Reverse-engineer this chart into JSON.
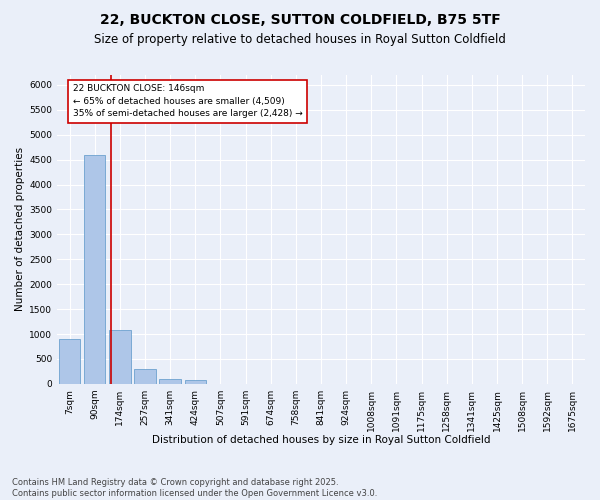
{
  "title": "22, BUCKTON CLOSE, SUTTON COLDFIELD, B75 5TF",
  "subtitle": "Size of property relative to detached houses in Royal Sutton Coldfield",
  "xlabel": "Distribution of detached houses by size in Royal Sutton Coldfield",
  "ylabel": "Number of detached properties",
  "categories": [
    "7sqm",
    "90sqm",
    "174sqm",
    "257sqm",
    "341sqm",
    "424sqm",
    "507sqm",
    "591sqm",
    "674sqm",
    "758sqm",
    "841sqm",
    "924sqm",
    "1008sqm",
    "1091sqm",
    "1175sqm",
    "1258sqm",
    "1341sqm",
    "1425sqm",
    "1508sqm",
    "1592sqm",
    "1675sqm"
  ],
  "values": [
    900,
    4600,
    1075,
    305,
    90,
    80,
    0,
    0,
    0,
    0,
    0,
    0,
    0,
    0,
    0,
    0,
    0,
    0,
    0,
    0,
    0
  ],
  "bar_color": "#aec6e8",
  "bar_edge_color": "#5a96c8",
  "vline_x": 1.65,
  "vline_color": "#cc0000",
  "annotation_text": "22 BUCKTON CLOSE: 146sqm\n← 65% of detached houses are smaller (4,509)\n35% of semi-detached houses are larger (2,428) →",
  "annotation_box_color": "#ffffff",
  "annotation_box_edge": "#cc0000",
  "ylim": [
    0,
    6200
  ],
  "yticks": [
    0,
    500,
    1000,
    1500,
    2000,
    2500,
    3000,
    3500,
    4000,
    4500,
    5000,
    5500,
    6000
  ],
  "background_color": "#eaeff9",
  "grid_color": "#ffffff",
  "footer": "Contains HM Land Registry data © Crown copyright and database right 2025.\nContains public sector information licensed under the Open Government Licence v3.0.",
  "title_fontsize": 10,
  "subtitle_fontsize": 8.5,
  "xlabel_fontsize": 7.5,
  "ylabel_fontsize": 7.5,
  "tick_fontsize": 6.5,
  "footer_fontsize": 6
}
